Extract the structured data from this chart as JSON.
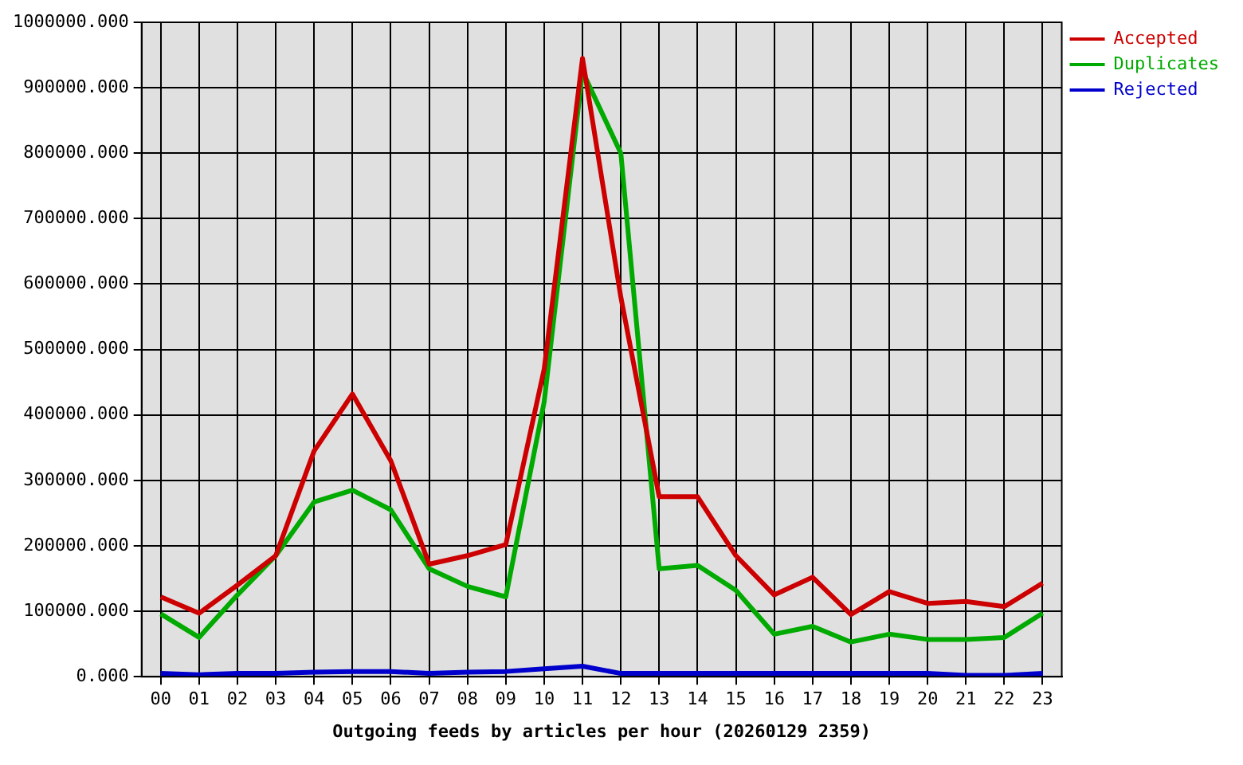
{
  "chart_data": {
    "type": "line",
    "xlabel": "Outgoing feeds by articles per hour (20260129 2359)",
    "categories": [
      "00",
      "01",
      "02",
      "03",
      "04",
      "05",
      "06",
      "07",
      "08",
      "09",
      "10",
      "11",
      "12",
      "13",
      "14",
      "15",
      "16",
      "17",
      "18",
      "19",
      "20",
      "21",
      "22",
      "23"
    ],
    "series": [
      {
        "name": "Accepted",
        "color": "#cc0000",
        "values": [
          122000,
          97000,
          140000,
          185000,
          345000,
          432000,
          330000,
          172000,
          185000,
          202000,
          470000,
          945000,
          580000,
          275000,
          275000,
          185000,
          125000,
          152000,
          95000,
          130000,
          112000,
          115000,
          107000,
          143000
        ]
      },
      {
        "name": "Duplicates",
        "color": "#00aa00",
        "values": [
          96000,
          60000,
          125000,
          185000,
          267000,
          285000,
          255000,
          165000,
          138000,
          122000,
          420000,
          925000,
          800000,
          165000,
          170000,
          132000,
          65000,
          77000,
          53000,
          65000,
          57000,
          57000,
          60000,
          97000
        ]
      },
      {
        "name": "Rejected",
        "color": "#0000cc",
        "values": [
          5000,
          3000,
          5000,
          5000,
          7000,
          8000,
          8000,
          5000,
          7000,
          8000,
          12000,
          16000,
          5000,
          5000,
          5000,
          5000,
          5000,
          5000,
          5000,
          5000,
          5000,
          2000,
          2000,
          5000
        ]
      }
    ],
    "ylim": [
      0,
      1000000
    ],
    "yticks": [
      {
        "value": 0,
        "label": "0.000"
      },
      {
        "value": 100000,
        "label": "100000.000"
      },
      {
        "value": 200000,
        "label": "200000.000"
      },
      {
        "value": 300000,
        "label": "300000.000"
      },
      {
        "value": 400000,
        "label": "400000.000"
      },
      {
        "value": 500000,
        "label": "500000.000"
      },
      {
        "value": 600000,
        "label": "600000.000"
      },
      {
        "value": 700000,
        "label": "700000.000"
      },
      {
        "value": 800000,
        "label": "800000.000"
      },
      {
        "value": 900000,
        "label": "900000.000"
      },
      {
        "value": 1000000,
        "label": "1000000.000"
      }
    ],
    "grid": true,
    "legend": "top right",
    "marker": "none",
    "line_style": "solid"
  }
}
